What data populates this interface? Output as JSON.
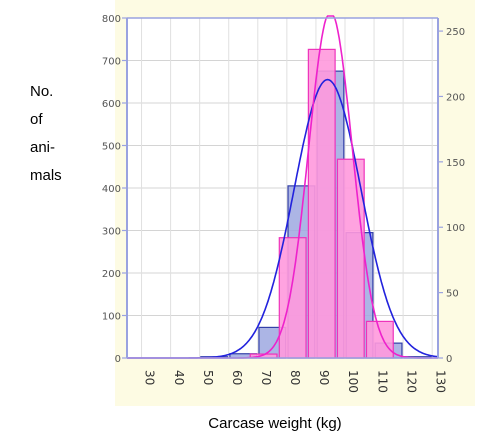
{
  "labels": {
    "ylabel_lines": [
      "No.",
      "of",
      "ani-",
      "mals"
    ],
    "xlabel": "Carcase weight (kg)"
  },
  "chart_data": {
    "type": "bar",
    "title": "",
    "xlabel": "Carcase weight (kg)",
    "ylabel": "No. of animals",
    "x_ticks": [
      30,
      40,
      50,
      60,
      70,
      80,
      90,
      100,
      110,
      120,
      130
    ],
    "xlim": [
      25,
      132
    ],
    "left_axis": {
      "ylim": [
        0,
        800
      ],
      "ticks": [
        0,
        100,
        200,
        300,
        400,
        500,
        600,
        700,
        800
      ]
    },
    "right_axis": {
      "ylim": [
        0,
        260
      ],
      "ticks": [
        0,
        50,
        100,
        150,
        200,
        250
      ]
    },
    "series": [
      {
        "axis": "left",
        "color": "#9da8e0",
        "edge": "#3340a8",
        "bars": [
          {
            "x": 55,
            "value": 3
          },
          {
            "x": 65,
            "value": 10
          },
          {
            "x": 75,
            "value": 72
          },
          {
            "x": 85,
            "value": 405
          },
          {
            "x": 95,
            "value": 675
          },
          {
            "x": 105,
            "value": 295
          },
          {
            "x": 115,
            "value": 35
          },
          {
            "x": 125,
            "value": 3
          }
        ],
        "curve": {
          "color": "#2222dd",
          "mean": 94,
          "sd": 11.5,
          "peak": 655
        }
      },
      {
        "axis": "right",
        "color": "#ff99dd",
        "edge": "#ee33bb",
        "bars": [
          {
            "x": 72,
            "value": 3
          },
          {
            "x": 82,
            "value": 92
          },
          {
            "x": 92,
            "value": 236
          },
          {
            "x": 102,
            "value": 152
          },
          {
            "x": 112,
            "value": 28
          }
        ],
        "curve": {
          "color": "#ee22cc",
          "mean": 95,
          "sd": 7.5,
          "peak": 265
        }
      }
    ],
    "grid": true
  }
}
